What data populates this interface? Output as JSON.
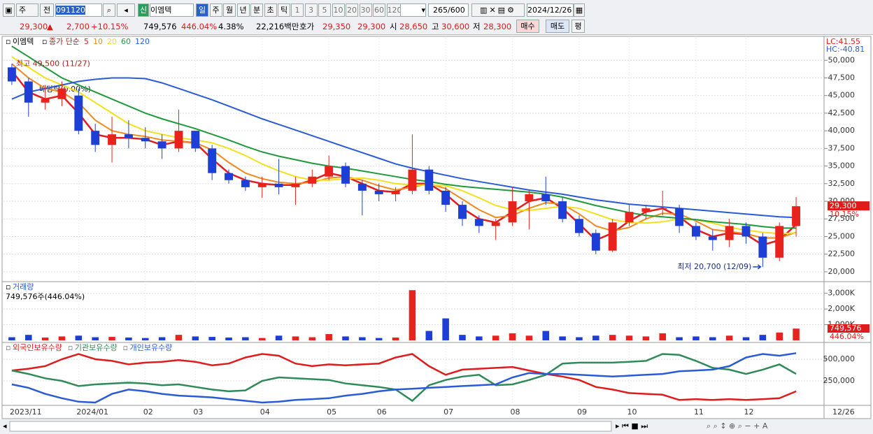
{
  "toolbar": {
    "market": "주",
    "prev": "전",
    "code": "091120",
    "new_badge": "신",
    "name": "이엠텍",
    "periods": [
      "일",
      "주",
      "월",
      "년",
      "분",
      "초",
      "틱"
    ],
    "intervals": [
      "1",
      "3",
      "5",
      "10",
      "20",
      "30",
      "60",
      "120"
    ],
    "count": "265",
    "count_max": "/600",
    "date": "2024/12/26"
  },
  "quote": {
    "price": "29,300",
    "arrow": "▲",
    "change": "2,700",
    "change_pct": "+10.15%",
    "volume": "749,576",
    "volume_ratio": "446.04%",
    "turnover": "4.38%",
    "amount": "22,216백만",
    "ask_label": "호가",
    "ask": "29,350",
    "bid": "29,300",
    "open_label": "시",
    "open": "28,650",
    "high_label": "고",
    "high": "30,600",
    "low_label": "저",
    "low": "28,300",
    "buy": "매수",
    "sell": "매도",
    "avg": "평"
  },
  "chart_data": [
    {
      "type": "candlestick",
      "title": "이엠텍",
      "ma_label": "종가 단순",
      "lc_label": "LC:41.55",
      "hc_label": "HC:-40.81",
      "high_note": "최고 49,500 (11/27)",
      "dividend_note": "배당락(0.00%)",
      "low_note": "최저 20,700 (12/09)",
      "last_price": "29,300",
      "last_change": "10.15%",
      "end_date": "12/26",
      "up_color": "#e8231d",
      "down_color": "#1d3fd6",
      "grid": true,
      "categories": [
        "2023/11",
        null,
        null,
        null,
        "2024/01",
        null,
        null,
        null,
        "02",
        null,
        null,
        "03",
        null,
        null,
        null,
        "04",
        null,
        null,
        null,
        "05",
        null,
        null,
        "06",
        null,
        null,
        null,
        "07",
        null,
        null,
        null,
        "08",
        null,
        null,
        null,
        "09",
        null,
        null,
        "10",
        null,
        null,
        null,
        "11",
        null,
        null,
        "12",
        null,
        null,
        null
      ],
      "open": [
        49000,
        47000,
        44000,
        44500,
        45000,
        40000,
        38000,
        39500,
        39000,
        38500,
        37500,
        40000,
        37500,
        34000,
        33000,
        32000,
        32500,
        32000,
        32500,
        33500,
        35000,
        32500,
        31500,
        31000,
        31500,
        34500,
        31500,
        29500,
        27500,
        26500,
        27000,
        30000,
        31000,
        30000,
        27500,
        25500,
        23000,
        27000,
        28500,
        29000,
        29000,
        26500,
        25000,
        24500,
        26500,
        25000,
        22000,
        26500
      ],
      "high": [
        49500,
        47500,
        46500,
        47000,
        46000,
        41000,
        42000,
        41500,
        40500,
        39500,
        43000,
        40000,
        38000,
        34500,
        33500,
        33500,
        36000,
        33500,
        34500,
        36500,
        35500,
        33000,
        32500,
        32000,
        39500,
        35000,
        32000,
        30000,
        28000,
        27500,
        32000,
        31500,
        33500,
        30500,
        28000,
        26000,
        27500,
        29500,
        29500,
        31500,
        29500,
        27000,
        26000,
        27500,
        27000,
        25500,
        27000,
        30600
      ],
      "low": [
        46500,
        42000,
        43000,
        43500,
        39500,
        37000,
        35500,
        37500,
        37500,
        36000,
        37000,
        37000,
        33000,
        32500,
        31500,
        30500,
        31000,
        29500,
        32000,
        33000,
        32000,
        28000,
        30000,
        30000,
        31000,
        31000,
        28500,
        26500,
        25500,
        24500,
        26500,
        26000,
        29500,
        27000,
        25000,
        22500,
        22800,
        26500,
        27500,
        28000,
        25500,
        24500,
        23000,
        23500,
        24000,
        20700,
        21500,
        25000
      ],
      "close": [
        47000,
        44000,
        44500,
        46000,
        40000,
        38000,
        39500,
        39000,
        38500,
        37500,
        40000,
        37500,
        34000,
        33000,
        32000,
        32500,
        32000,
        32500,
        33500,
        35000,
        32500,
        31500,
        31000,
        31500,
        34500,
        31500,
        29500,
        27500,
        26500,
        27000,
        30000,
        31000,
        30000,
        27500,
        25500,
        23000,
        27000,
        28500,
        29000,
        29000,
        26500,
        25000,
        24500,
        26500,
        25000,
        22000,
        26500,
        29300
      ],
      "series": [
        {
          "name": "5",
          "color": "#e11d1d",
          "width": 2.5,
          "values": [
            48500,
            45500,
            44500,
            45000,
            42500,
            39500,
            39000,
            39000,
            38800,
            38000,
            38500,
            38300,
            36000,
            34000,
            33000,
            32500,
            32300,
            32300,
            33000,
            34000,
            33500,
            32500,
            31500,
            31300,
            32500,
            32500,
            31000,
            29000,
            27500,
            27000,
            28500,
            30000,
            30500,
            29000,
            26800,
            24500,
            25500,
            27200,
            28500,
            29000,
            27800,
            26000,
            25000,
            25500,
            25300,
            23800,
            24500,
            26700
          ]
        },
        {
          "name": "10",
          "color": "#f08a1c",
          "width": 2,
          "values": [
            49500,
            47500,
            46000,
            45500,
            44000,
            41500,
            40000,
            39500,
            39200,
            38700,
            38500,
            38300,
            37300,
            35500,
            34000,
            33200,
            32700,
            32500,
            32700,
            33300,
            33500,
            33000,
            32200,
            31600,
            32000,
            32500,
            31800,
            30300,
            28800,
            27700,
            28000,
            29000,
            29800,
            29600,
            28200,
            26500,
            25800,
            26300,
            27500,
            28300,
            28200,
            27200,
            26000,
            25700,
            25400,
            24800,
            24800,
            25600
          ]
        },
        {
          "name": "20",
          "color": "#f2e01a",
          "width": 2,
          "values": [
            50500,
            49000,
            47500,
            46500,
            45500,
            44000,
            42500,
            41000,
            40000,
            39500,
            39000,
            38700,
            38300,
            37500,
            36500,
            35300,
            34300,
            33500,
            33000,
            33000,
            33200,
            33300,
            33000,
            32500,
            32300,
            32300,
            32200,
            31500,
            30500,
            29400,
            28800,
            28700,
            29000,
            29300,
            29000,
            28200,
            27400,
            27000,
            26900,
            27100,
            27500,
            27400,
            26900,
            26300,
            25900,
            25600,
            25400,
            25500
          ]
        },
        {
          "name": "60",
          "color": "#1f9a3b",
          "width": 2,
          "values": [
            52000,
            50500,
            49000,
            47500,
            46500,
            45500,
            44500,
            43500,
            42500,
            41700,
            41000,
            40300,
            39500,
            38700,
            37800,
            37000,
            36400,
            35900,
            35400,
            35000,
            34700,
            34300,
            33900,
            33500,
            33100,
            32800,
            32400,
            32100,
            31900,
            31700,
            31500,
            31300,
            31000,
            30600,
            30000,
            29400,
            28900,
            28400,
            28000,
            27800,
            27600,
            27400,
            27100,
            26900,
            26700,
            26400,
            26200,
            26200
          ]
        },
        {
          "name": "120",
          "color": "#2a5bd7",
          "width": 2,
          "values": [
            44500,
            45500,
            46000,
            46500,
            47000,
            47300,
            47500,
            47500,
            47400,
            46800,
            46000,
            45200,
            44400,
            43500,
            42600,
            41700,
            40900,
            40100,
            39300,
            38500,
            37700,
            36900,
            36100,
            35300,
            34700,
            34200,
            33700,
            33200,
            32800,
            32400,
            32000,
            31600,
            31300,
            31000,
            30600,
            30200,
            29900,
            29600,
            29400,
            29200,
            29000,
            28800,
            28600,
            28400,
            28200,
            28000,
            27800,
            27700
          ]
        }
      ],
      "ylim": [
        18900,
        53100
      ],
      "yticks": [
        {
          "value": 50000,
          "label": "50,000"
        },
        {
          "value": 47500,
          "label": "47,500"
        },
        {
          "value": 45000,
          "label": "45,000"
        },
        {
          "value": 42500,
          "label": "42,500"
        },
        {
          "value": 40000,
          "label": "40,000"
        },
        {
          "value": 37500,
          "label": "37,500"
        },
        {
          "value": 35000,
          "label": "35,000"
        },
        {
          "value": 32500,
          "label": "32,500"
        },
        {
          "value": 30000,
          "label": "30,000"
        },
        {
          "value": 27500,
          "label": "27,500"
        },
        {
          "value": 25000,
          "label": "25,000"
        },
        {
          "value": 22500,
          "label": "22,500"
        },
        {
          "value": 20000,
          "label": "20,000"
        }
      ]
    },
    {
      "type": "bar",
      "title": "거래량",
      "subtitle": "749,576주(446.04%)",
      "last_label": "749,576",
      "last_ratio": "446.04%",
      "values": [
        200000,
        350000,
        180000,
        250000,
        300000,
        200000,
        220000,
        180000,
        150000,
        200000,
        350000,
        250000,
        220000,
        180000,
        200000,
        150000,
        300000,
        250000,
        200000,
        400000,
        250000,
        200000,
        150000,
        180000,
        3200000,
        600000,
        1400000,
        350000,
        250000,
        300000,
        450000,
        300000,
        600000,
        250000,
        200000,
        300000,
        350000,
        300000,
        250000,
        450000,
        200000,
        250000,
        200000,
        300000,
        200000,
        350000,
        500000,
        749576
      ],
      "ylim": [
        0,
        3700000
      ],
      "yticks": [
        {
          "value": 1000000,
          "label": "1,000K"
        },
        {
          "value": 2000000,
          "label": "2,000K"
        },
        {
          "value": 3000000,
          "label": "3,000K"
        }
      ]
    },
    {
      "type": "line",
      "ylim": [
        -16000,
        677000
      ],
      "yticks": [
        {
          "value": 250000,
          "label": "250,000"
        },
        {
          "value": 500000,
          "label": "500,000"
        }
      ],
      "series": [
        {
          "name": "외국인보유수량",
          "color": "#e01b1b",
          "values": [
            370000,
            390000,
            420000,
            500000,
            560000,
            500000,
            480000,
            440000,
            460000,
            470000,
            490000,
            470000,
            430000,
            450000,
            520000,
            560000,
            540000,
            450000,
            420000,
            440000,
            430000,
            440000,
            450000,
            520000,
            560000,
            420000,
            320000,
            380000,
            390000,
            400000,
            410000,
            370000,
            330000,
            300000,
            260000,
            180000,
            150000,
            110000,
            100000,
            90000,
            30000,
            40000,
            30000,
            40000,
            30000,
            40000,
            50000,
            130000
          ]
        },
        {
          "name": "기관보유수량",
          "color": "#2e8b57",
          "values": [
            370000,
            330000,
            280000,
            250000,
            190000,
            210000,
            220000,
            230000,
            220000,
            200000,
            210000,
            180000,
            150000,
            130000,
            140000,
            250000,
            290000,
            280000,
            270000,
            260000,
            220000,
            200000,
            180000,
            150000,
            20000,
            200000,
            260000,
            300000,
            320000,
            200000,
            210000,
            260000,
            320000,
            450000,
            460000,
            460000,
            460000,
            470000,
            480000,
            560000,
            550000,
            480000,
            400000,
            380000,
            330000,
            380000,
            440000,
            330000
          ]
        },
        {
          "name": "개인보유수량",
          "color": "#2a5bd7",
          "values": [
            210000,
            170000,
            100000,
            50000,
            10000,
            0,
            100000,
            150000,
            130000,
            100000,
            80000,
            70000,
            60000,
            40000,
            20000,
            0,
            10000,
            30000,
            40000,
            50000,
            80000,
            100000,
            130000,
            150000,
            160000,
            170000,
            180000,
            190000,
            200000,
            210000,
            290000,
            340000,
            330000,
            330000,
            320000,
            310000,
            300000,
            310000,
            320000,
            330000,
            360000,
            370000,
            380000,
            420000,
            520000,
            560000,
            540000,
            570000
          ]
        }
      ]
    }
  ]
}
